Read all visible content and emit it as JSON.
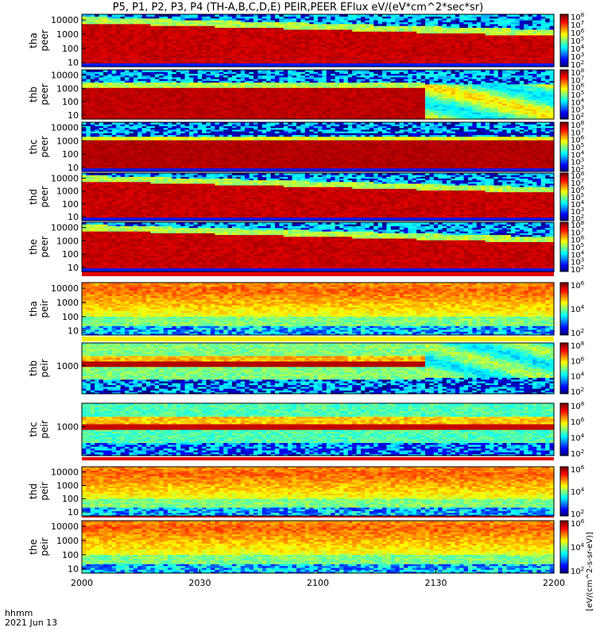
{
  "title": "P5, P1, P2, P3, P4 (TH-A,B,C,D,E) PEIR,PEER EFlux eV/(eV*cm^2*sec*sr)",
  "footer": {
    "line1": "hhmm",
    "line2": "2021 Jun 13"
  },
  "colorbar_title": "[eV/(cm^2-s-sr-eV)]",
  "chart_data": [
    {
      "type": "heatmap",
      "name": "tha peer",
      "ylabel": [
        "tha",
        "peer"
      ],
      "y_scale": "log",
      "y_ticks": [
        10,
        100,
        1000,
        10000
      ],
      "color_ticks": [
        2,
        3,
        4,
        5,
        6,
        7,
        8
      ],
      "flux_band": {
        "upper_start": 3000,
        "upper_end": 1500,
        "lower": 20
      },
      "style": "peer"
    },
    {
      "type": "heatmap",
      "name": "thb peer",
      "ylabel": [
        "thb",
        "peer"
      ],
      "y_scale": "log",
      "y_ticks": [
        10,
        100,
        1000,
        10000
      ],
      "color_ticks": [
        2,
        3,
        4,
        5,
        6,
        7,
        8
      ],
      "style": "peer-b"
    },
    {
      "type": "heatmap",
      "name": "thc peer",
      "ylabel": [
        "thc",
        "peer"
      ],
      "y_scale": "log",
      "y_ticks": [
        10,
        100,
        1000,
        10000
      ],
      "color_ticks": [
        2,
        3,
        4,
        5,
        6,
        7,
        8
      ],
      "style": "peer-c"
    },
    {
      "type": "heatmap",
      "name": "thd peer",
      "ylabel": [
        "thd",
        "peer"
      ],
      "y_scale": "log",
      "y_ticks": [
        10,
        100,
        1000,
        10000
      ],
      "color_ticks": [
        2,
        3,
        4,
        5,
        6,
        7,
        8
      ],
      "style": "peer"
    },
    {
      "type": "heatmap",
      "name": "the peer",
      "ylabel": [
        "the",
        "peer"
      ],
      "y_scale": "log",
      "y_ticks": [
        10,
        100,
        1000,
        10000
      ],
      "color_ticks": [
        2,
        3,
        4,
        5,
        6,
        7,
        8
      ],
      "style": "peer"
    },
    {
      "type": "heatmap",
      "name": "tha peir",
      "ylabel": [
        "tha",
        "peir"
      ],
      "y_scale": "log",
      "y_ticks": [
        10,
        100,
        1000,
        10000
      ],
      "color_ticks": [
        2,
        4,
        6
      ],
      "style": "peir"
    },
    {
      "type": "heatmap",
      "name": "thb peir",
      "ylabel": [
        "thb",
        "peir"
      ],
      "y_scale": "log",
      "y_ticks": [
        1000
      ],
      "color_ticks": [
        2,
        4,
        6,
        8
      ],
      "style": "peir-b"
    },
    {
      "type": "heatmap",
      "name": "thc peir",
      "ylabel": [
        "thc",
        "peir"
      ],
      "y_scale": "log",
      "y_ticks": [
        1000
      ],
      "color_ticks": [
        2,
        4,
        6,
        8
      ],
      "style": "peir-c"
    },
    {
      "type": "heatmap",
      "name": "thd peir",
      "ylabel": [
        "thd",
        "peir"
      ],
      "y_scale": "log",
      "y_ticks": [
        10,
        100,
        1000,
        10000
      ],
      "color_ticks": [
        2,
        4,
        6
      ],
      "style": "peir"
    },
    {
      "type": "heatmap",
      "name": "the peir",
      "ylabel": [
        "the",
        "peir"
      ],
      "y_scale": "log",
      "y_ticks": [
        10,
        100,
        1000,
        10000
      ],
      "color_ticks": [
        2,
        4,
        6
      ],
      "style": "peir"
    }
  ],
  "x_axis": {
    "ticks": [
      "2000",
      "2030",
      "2100",
      "2130",
      "2200"
    ],
    "range": [
      "2000",
      "2200"
    ]
  }
}
